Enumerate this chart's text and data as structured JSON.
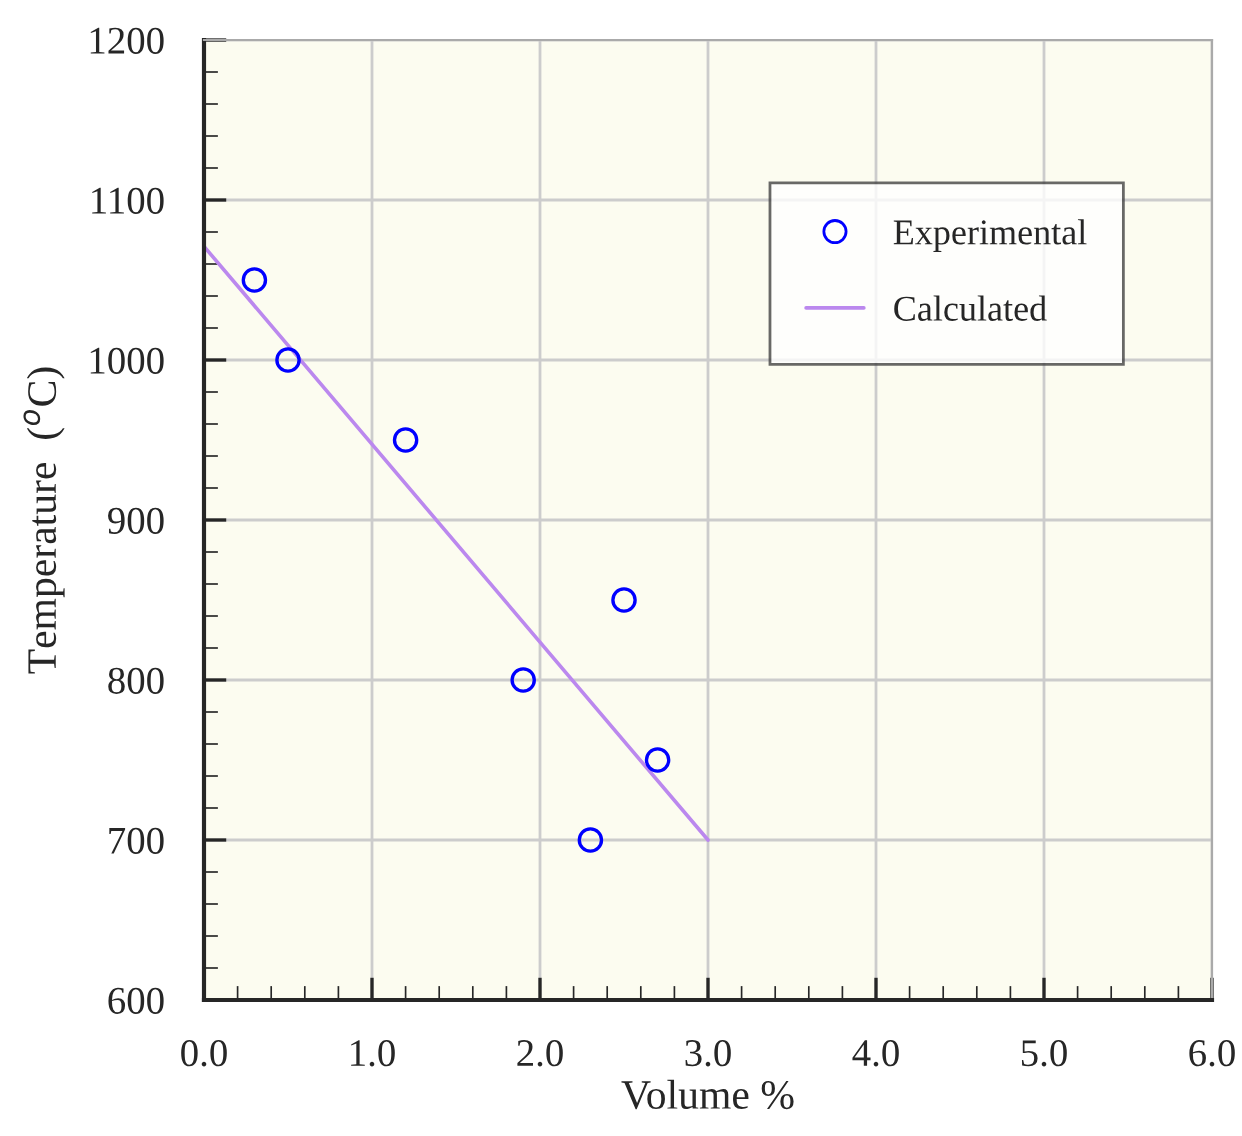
{
  "chart_data": {
    "type": "scatter",
    "xlabel": "Volume %",
    "ylabel": "Temperature  ($^{o}$C)",
    "xlim": [
      0,
      6
    ],
    "xticks": [
      {
        "value": 0,
        "label": "0.0"
      },
      {
        "value": 1,
        "label": "1.0"
      },
      {
        "value": 2,
        "label": "2.0"
      },
      {
        "value": 3,
        "label": "3.0"
      },
      {
        "value": 4,
        "label": "4.0"
      },
      {
        "value": 5,
        "label": "5.0"
      },
      {
        "value": 6,
        "label": "6.0"
      }
    ],
    "ylim": [
      600,
      1200
    ],
    "yticks": [
      600,
      700,
      800,
      900,
      1000,
      1100,
      1200
    ],
    "grid": true,
    "legend": "top right",
    "series": [
      {
        "name": "Experimental",
        "marker": "circle",
        "color": "#0000ff",
        "x": [
          0.3,
          0.5,
          1.2,
          1.9,
          2.3,
          2.5,
          2.7
        ],
        "values": [
          1050,
          1000,
          950,
          800,
          700,
          850,
          750
        ]
      },
      {
        "name": "Calculated",
        "type": "line",
        "color": "#bb88ee",
        "x": [
          0,
          3.0
        ],
        "values": [
          1071,
          700
        ]
      }
    ]
  }
}
